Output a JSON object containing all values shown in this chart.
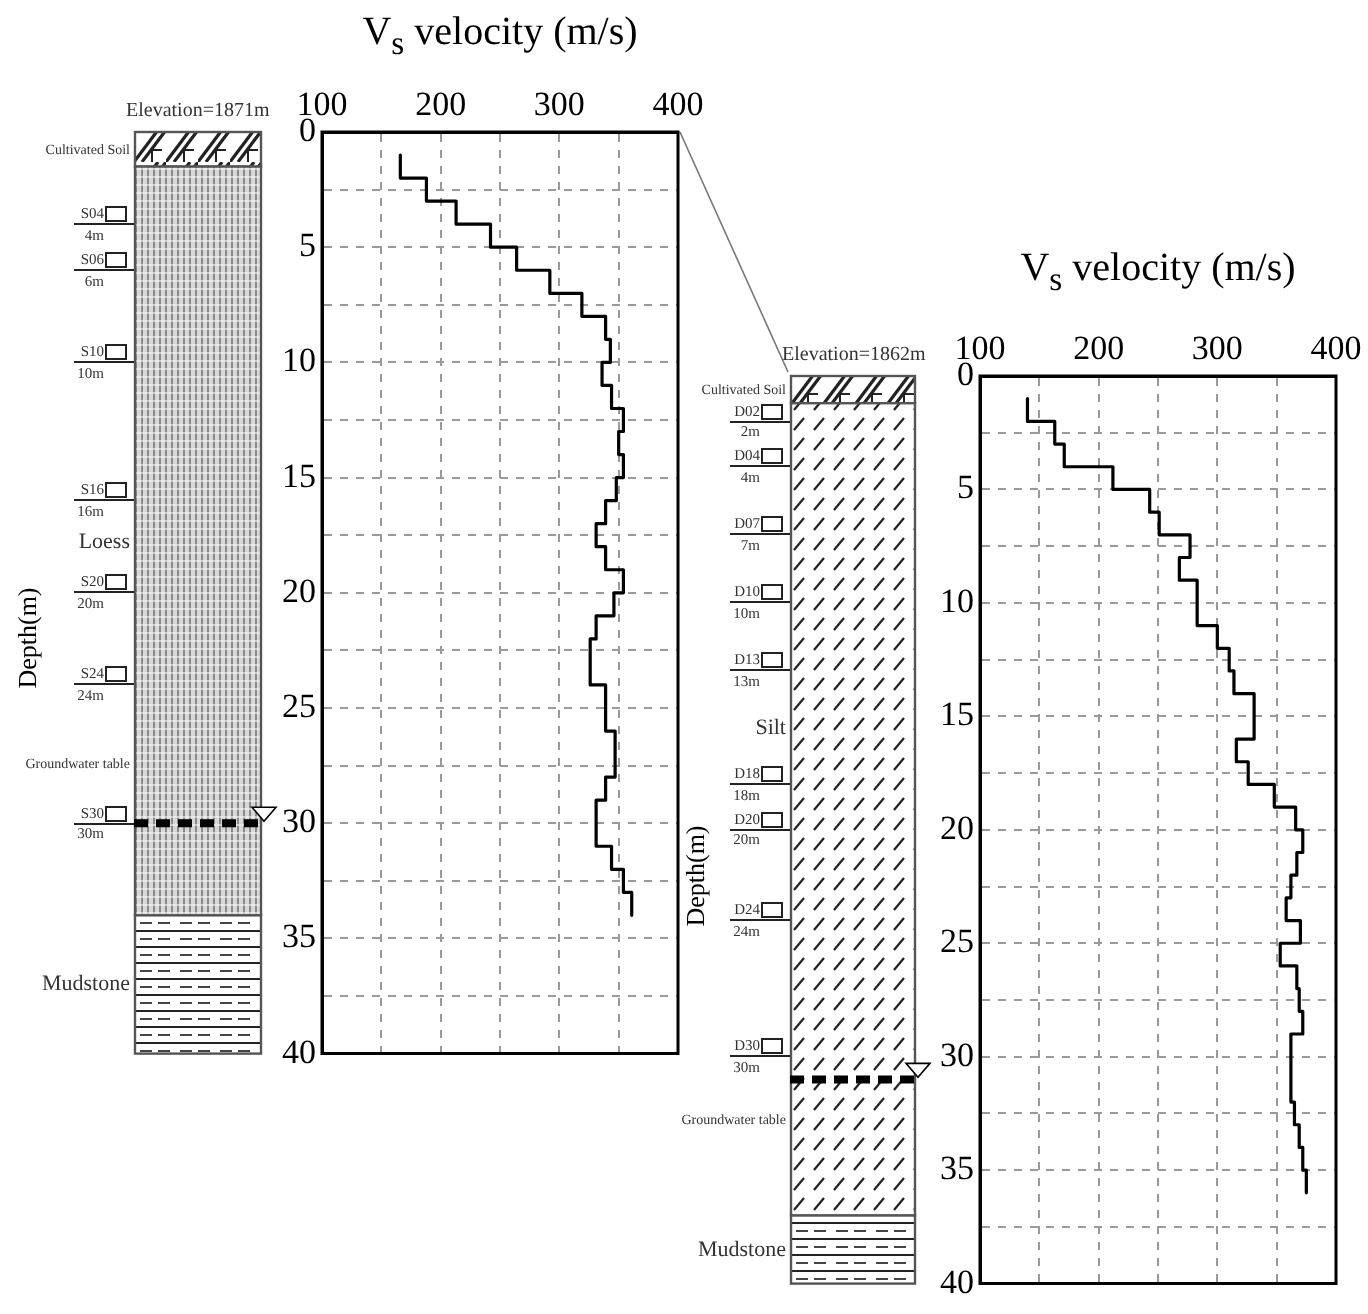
{
  "chart_data": [
    {
      "type": "line",
      "xlabel": "V$_{s}$ velocity (m/s)",
      "ylabel": "Depth(m)",
      "xlim": [
        100,
        400
      ],
      "xticks": [
        100,
        {
          "value": 150,
          "label": null
        },
        200,
        {
          "value": 250,
          "label": null
        },
        300,
        {
          "value": 350,
          "label": null
        },
        400
      ],
      "ylim": [
        40,
        0
      ],
      "yticks": [
        0,
        {
          "value": 2.5,
          "label": null
        },
        5,
        {
          "value": 7.5,
          "label": null
        },
        10,
        {
          "value": 12.5,
          "label": null
        },
        15,
        {
          "value": 17.5,
          "label": null
        },
        20,
        {
          "value": 22.5,
          "label": null
        },
        25,
        {
          "value": 27.5,
          "label": null
        },
        30,
        {
          "value": 32.5,
          "label": null
        },
        35,
        {
          "value": 37.5,
          "label": null
        },
        40
      ],
      "grid": true,
      "marker": "none",
      "line_style": "solid",
      "series": [
        {
          "color": "#000000",
          "x": [
            166,
            166,
            188,
            188,
            213,
            213,
            242,
            242,
            264,
            264,
            292,
            292,
            319,
            319,
            339,
            339,
            343,
            343,
            336,
            336,
            344,
            344,
            354,
            354,
            350,
            350,
            354,
            354,
            348,
            348,
            339,
            339,
            331,
            331,
            339,
            339,
            354,
            354,
            346,
            346,
            331,
            331,
            326,
            326,
            339,
            339,
            347,
            347,
            339,
            339,
            331,
            331,
            344,
            344,
            354,
            354,
            361,
            361
          ],
          "values": [
            1,
            2,
            2,
            3,
            3,
            4,
            4,
            5,
            5,
            6,
            6,
            7,
            7,
            8,
            8,
            9,
            9,
            10,
            10,
            11,
            11,
            12,
            12,
            13,
            13,
            14,
            14,
            15,
            15,
            16,
            16,
            17,
            17,
            18,
            18,
            19,
            19,
            20,
            20,
            21,
            21,
            22,
            22,
            24,
            24,
            26,
            26,
            28,
            28,
            29,
            29,
            31,
            31,
            32,
            32,
            33,
            33,
            34
          ]
        }
      ],
      "annotations": [
        "Elevation=1871m",
        "Cultivated Soil",
        "S04",
        "4m",
        "S06",
        "6m",
        "S10",
        "10m",
        "S16",
        "16m",
        "Loess",
        "S20",
        "20m",
        "S24",
        "24m",
        "Groundwater table",
        "S30",
        "30m",
        "Mudstone"
      ]
    },
    {
      "type": "line",
      "xlabel": "V$_{s}$ velocity (m/s)",
      "ylabel": "Depth(m)",
      "xlim": [
        100,
        400
      ],
      "xticks": [
        100,
        {
          "value": 150,
          "label": null
        },
        200,
        {
          "value": 250,
          "label": null
        },
        300,
        {
          "value": 350,
          "label": null
        },
        400
      ],
      "ylim": [
        40,
        0
      ],
      "yticks": [
        0,
        {
          "value": 2.5,
          "label": null
        },
        5,
        {
          "value": 7.5,
          "label": null
        },
        10,
        {
          "value": 12.5,
          "label": null
        },
        15,
        {
          "value": 17.5,
          "label": null
        },
        20,
        {
          "value": 22.5,
          "label": null
        },
        25,
        {
          "value": 27.5,
          "label": null
        },
        30,
        {
          "value": 32.5,
          "label": null
        },
        35,
        {
          "value": 37.5,
          "label": null
        },
        40
      ],
      "grid": true,
      "marker": "none",
      "line_style": "solid",
      "series": [
        {
          "color": "#000000",
          "x": [
            140,
            140,
            163,
            163,
            171,
            171,
            212,
            212,
            243,
            243,
            251,
            251,
            277,
            277,
            268,
            268,
            283,
            283,
            300,
            300,
            310,
            310,
            314,
            314,
            331,
            331,
            316,
            316,
            326,
            326,
            348,
            348,
            366,
            366,
            372,
            372,
            367,
            367,
            362,
            362,
            358,
            358,
            370,
            370,
            353,
            353,
            367,
            367,
            369,
            369,
            372,
            372,
            362,
            362,
            365,
            365,
            369,
            369,
            372,
            372,
            375,
            375
          ],
          "values": [
            1,
            2,
            2,
            3,
            3,
            4,
            4,
            5,
            5,
            6,
            6,
            7,
            7,
            8,
            8,
            9,
            9,
            11,
            11,
            12,
            12,
            13,
            13,
            14,
            14,
            16,
            16,
            17,
            17,
            18,
            18,
            19,
            19,
            20,
            20,
            21,
            21,
            22,
            22,
            23,
            23,
            24,
            24,
            25,
            25,
            26,
            26,
            27,
            27,
            28,
            28,
            29,
            29,
            32,
            32,
            33,
            33,
            34,
            34,
            35,
            35,
            36
          ]
        }
      ],
      "annotations": [
        "Elevation=1862m",
        "Cultivated Soil",
        "D02",
        "2m",
        "D04",
        "4m",
        "D07",
        "7m",
        "D10",
        "10m",
        "D13",
        "13m",
        "Silt",
        "D18",
        "18m",
        "D20",
        "20m",
        "D24",
        "24m",
        "D30",
        "30m",
        "Groundwater table",
        "Mudstone"
      ]
    }
  ]
}
